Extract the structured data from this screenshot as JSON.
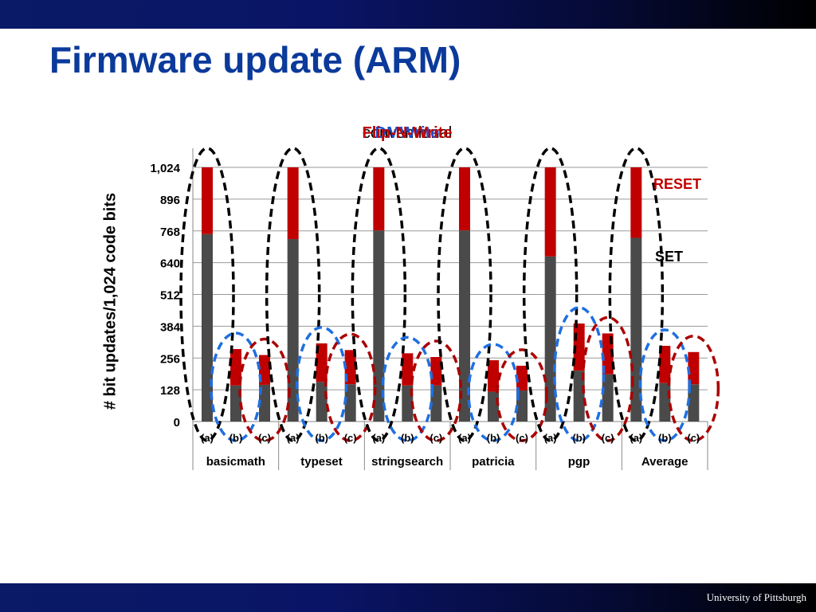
{
  "slide": {
    "title": "Firmware update (ARM)",
    "footer": "University of Pittsburgh"
  },
  "chart_data": {
    "type": "bar",
    "stacked": true,
    "title_overlap": [
      "conventional",
      "DMWrite",
      "Flip-N-Write"
    ],
    "ylabel": "# bit updates/1,024 code bits",
    "ylim": [
      0,
      1024
    ],
    "yticks": [
      "0",
      "128",
      "256",
      "384",
      "512",
      "640",
      "768",
      "896",
      "1,024"
    ],
    "ytick_values": [
      0,
      128,
      256,
      384,
      512,
      640,
      768,
      896,
      1024
    ],
    "groups": [
      "basicmath",
      "typeset",
      "stringsearch",
      "patricia",
      "pgp",
      "Average"
    ],
    "sub_categories": [
      "(a)",
      "(b)",
      "(c)"
    ],
    "series": [
      {
        "name": "SET",
        "color": "#4a4a4a",
        "values": [
          [
            755,
            145,
            148
          ],
          [
            735,
            160,
            150
          ],
          [
            770,
            145,
            145
          ],
          [
            770,
            120,
            125
          ],
          [
            665,
            205,
            190
          ],
          [
            740,
            155,
            150
          ]
        ]
      },
      {
        "name": "RESET",
        "color": "#c00000",
        "values": [
          [
            269,
            147,
            120
          ],
          [
            289,
            155,
            138
          ],
          [
            254,
            130,
            115
          ],
          [
            254,
            127,
            100
          ],
          [
            359,
            190,
            165
          ],
          [
            284,
            150,
            130
          ]
        ]
      }
    ],
    "legend": {
      "reset": "RESET",
      "set": "SET"
    },
    "ellipse_colors": {
      "a": "#000000",
      "b": "#1f6fe0",
      "c": "#aa0000"
    }
  }
}
